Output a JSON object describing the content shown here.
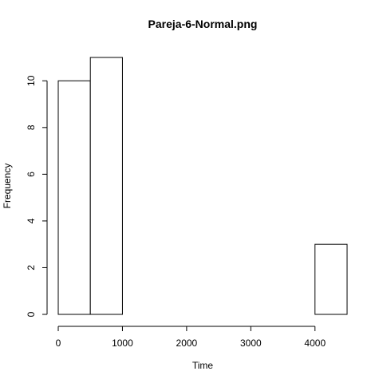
{
  "chart_data": {
    "type": "bar",
    "title": "Pareja-6-Normal.png",
    "xlabel": "Time",
    "ylabel": "Frequency",
    "bin_edges": [
      0,
      500,
      1000,
      1500,
      2000,
      2500,
      3000,
      3500,
      4000,
      4500
    ],
    "values": [
      10,
      11,
      0,
      0,
      0,
      0,
      0,
      0,
      3
    ],
    "x_ticks": [
      "0",
      "1000",
      "2000",
      "3000",
      "4000"
    ],
    "y_ticks": [
      "0",
      "2",
      "4",
      "6",
      "8",
      "10"
    ],
    "xlim": [
      0,
      4500
    ],
    "ylim": [
      0,
      11
    ],
    "grid": false,
    "bar_fill": "#ffffff",
    "bar_stroke": "#000000"
  }
}
